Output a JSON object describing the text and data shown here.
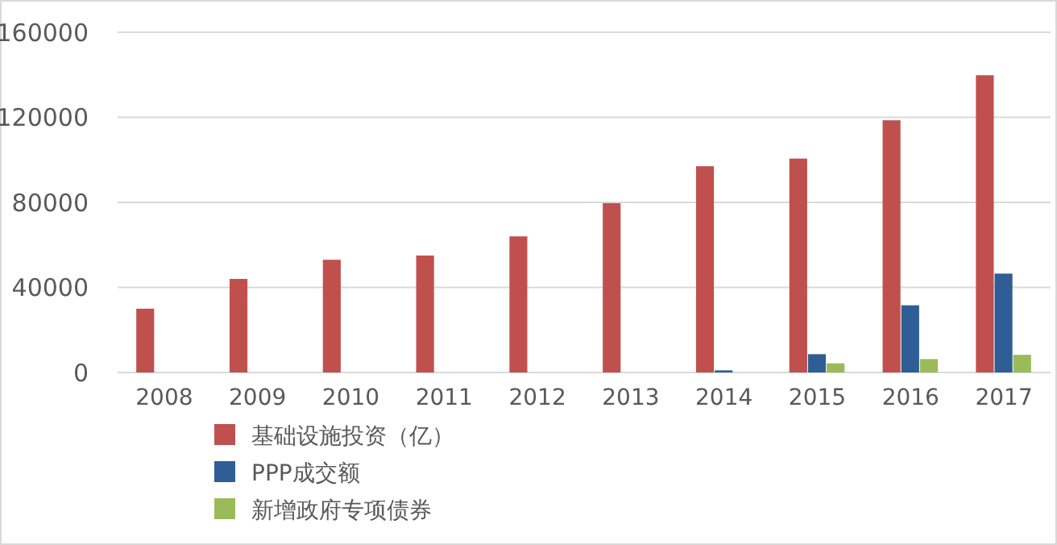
{
  "chart_data": {
    "type": "bar",
    "categories": [
      "2008",
      "2009",
      "2010",
      "2011",
      "2012",
      "2013",
      "2014",
      "2015",
      "2016",
      "2017"
    ],
    "series": [
      {
        "name": "基础设施投资（亿）",
        "color": "#c0504d",
        "values": [
          30000,
          44000,
          53000,
          55000,
          64000,
          79600,
          97000,
          100600,
          118600,
          139800
        ]
      },
      {
        "name": "PPP成交额",
        "color": "#2f5e96",
        "values": [
          null,
          null,
          null,
          null,
          null,
          null,
          1000,
          8600,
          31600,
          46500
        ]
      },
      {
        "name": "新增政府专项债券",
        "color": "#9bbb59",
        "values": [
          null,
          null,
          null,
          null,
          null,
          null,
          null,
          4300,
          6300,
          8300
        ]
      }
    ],
    "ylim": [
      0,
      160000
    ],
    "yticks": [
      0,
      40000,
      80000,
      120000,
      160000
    ],
    "grid": "y",
    "legend": "bottom"
  }
}
